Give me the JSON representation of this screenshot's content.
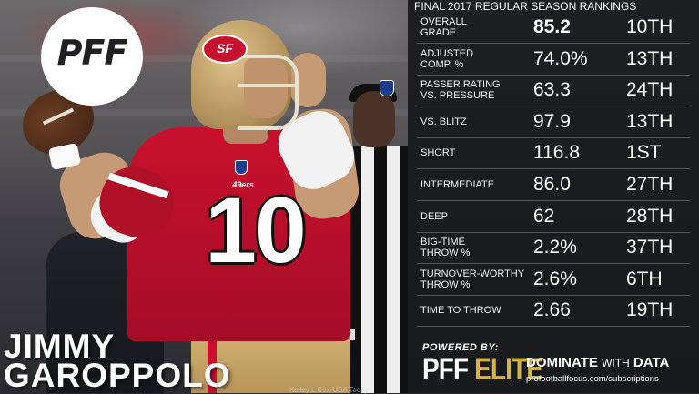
{
  "player": {
    "first_name": "JIMMY",
    "last_name": "GAROPPOLO",
    "jersey_number": "10",
    "team_logo_text": "SF",
    "chest_logo_text": "49ers"
  },
  "brand": {
    "logo_text": "PFF",
    "powered_by": "POWERED BY:",
    "elite_prefix": "PFF ",
    "elite_word": "ELITE",
    "tagline_dominate": "DOMINATE",
    "tagline_with": "WITH",
    "tagline_data": "DATA",
    "url": "profootballfocus.com/subscriptions",
    "photo_credit": "Kelley L Cox-USA Today"
  },
  "panel": {
    "title": "FINAL 2017 REGULAR SEASON RANKINGS",
    "rows": [
      {
        "label": "OVERALL\nGRADE",
        "value": "85.2",
        "rank": "10TH"
      },
      {
        "label": "ADJUSTED\nCOMP. %",
        "value": "74.0%",
        "rank": "13TH"
      },
      {
        "label": "PASSER RATING\nVS. PRESSURE",
        "value": "63.3",
        "rank": "24TH"
      },
      {
        "label": "VS. BLITZ",
        "value": "97.9",
        "rank": "13TH"
      },
      {
        "label": "SHORT",
        "value": "116.8",
        "rank": "1ST"
      },
      {
        "label": "INTERMEDIATE",
        "value": "86.0",
        "rank": "27TH"
      },
      {
        "label": "DEEP",
        "value": "62",
        "rank": "28TH"
      },
      {
        "label": "BIG-TIME\nTHROW %",
        "value": "2.2%",
        "rank": "37TH"
      },
      {
        "label": "TURNOVER-WORTHY\nTHROW %",
        "value": "2.6%",
        "rank": "6TH"
      },
      {
        "label": "TIME TO THROW",
        "value": "2.66",
        "rank": "19TH"
      }
    ]
  },
  "colors": {
    "team_red": "#c8102e",
    "team_gold": "#b1915c",
    "elite_gold": "#d4b446",
    "panel_bg": "#1c1e20"
  }
}
